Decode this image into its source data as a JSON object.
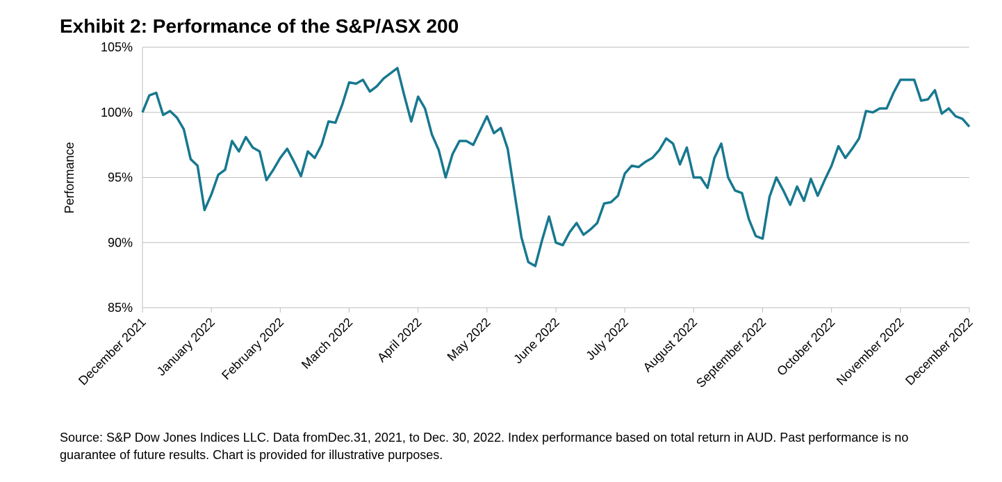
{
  "chart_data": {
    "type": "line",
    "title": "Exhibit 2: Performance of the S&P/ASX 200",
    "y_label": "Performance",
    "note": "Source: S&P Dow Jones Indices LLC.  Data fromDec.31, 2021, to Dec. 30, 2022.  Index performance based on total return in AUD.  Past performance is no guarantee of future results.  Chart is provided for illustrative purposes.",
    "categories": [
      "December 2021",
      null,
      null,
      null,
      null,
      null,
      null,
      null,
      null,
      null,
      "January 2022",
      null,
      null,
      null,
      null,
      null,
      null,
      null,
      null,
      null,
      "February 2022",
      null,
      null,
      null,
      null,
      null,
      null,
      null,
      null,
      null,
      "March 2022",
      null,
      null,
      null,
      null,
      null,
      null,
      null,
      null,
      null,
      "April 2022",
      null,
      null,
      null,
      null,
      null,
      null,
      null,
      null,
      null,
      "May 2022",
      null,
      null,
      null,
      null,
      null,
      null,
      null,
      null,
      null,
      "June 2022",
      null,
      null,
      null,
      null,
      null,
      null,
      null,
      null,
      null,
      "July 2022",
      null,
      null,
      null,
      null,
      null,
      null,
      null,
      null,
      null,
      "August 2022",
      null,
      null,
      null,
      null,
      null,
      null,
      null,
      null,
      null,
      "September 2022",
      null,
      null,
      null,
      null,
      null,
      null,
      null,
      null,
      null,
      "October 2022",
      null,
      null,
      null,
      null,
      null,
      null,
      null,
      null,
      null,
      "November 2022",
      null,
      null,
      null,
      null,
      null,
      null,
      null,
      null,
      null,
      "December 2022"
    ],
    "series": [
      {
        "name": "S&P/ASX 200",
        "color": "#17788f",
        "values": [
          100,
          101.3,
          101.5,
          99.8,
          100.1,
          99.6,
          98.7,
          96.4,
          95.9,
          92.5,
          93.7,
          95.2,
          95.6,
          97.8,
          97.0,
          98.1,
          97.3,
          97.0,
          94.8,
          95.6,
          96.5,
          97.2,
          96.2,
          95.1,
          97.0,
          96.5,
          97.5,
          99.3,
          99.2,
          100.6,
          102.3,
          102.2,
          102.5,
          101.6,
          102.0,
          102.6,
          103.0,
          103.4,
          101.3,
          99.3,
          101.2,
          100.3,
          98.3,
          97.1,
          95.0,
          96.8,
          97.8,
          97.8,
          97.5,
          98.6,
          99.7,
          98.4,
          98.8,
          97.2,
          93.8,
          90.4,
          88.5,
          88.2,
          90.2,
          92.0,
          90.0,
          89.8,
          90.8,
          91.5,
          90.6,
          91.0,
          91.5,
          93.0,
          93.1,
          93.6,
          95.3,
          95.9,
          95.8,
          96.2,
          96.5,
          97.1,
          98.0,
          97.6,
          96.0,
          97.3,
          95.0,
          95.0,
          94.2,
          96.5,
          97.6,
          95.0,
          94.0,
          93.8,
          91.8,
          90.5,
          90.3,
          93.5,
          95.0,
          94.0,
          92.9,
          94.3,
          93.2,
          94.9,
          93.6,
          94.8,
          95.9,
          97.4,
          96.5,
          97.2,
          98.0,
          100.1,
          100.0,
          100.3,
          100.3,
          101.5,
          102.5,
          102.5,
          102.5,
          100.9,
          101.0,
          101.7,
          99.9,
          100.3,
          99.7,
          99.5,
          98.9
        ]
      }
    ],
    "ylim": [
      85,
      105
    ],
    "yticks": [
      {
        "value": 85,
        "label": "85%"
      },
      {
        "value": 90,
        "label": "90%"
      },
      {
        "value": 95,
        "label": "95%"
      },
      {
        "value": 100,
        "label": "100%"
      },
      {
        "value": 105,
        "label": "105%"
      }
    ],
    "grid": true
  }
}
